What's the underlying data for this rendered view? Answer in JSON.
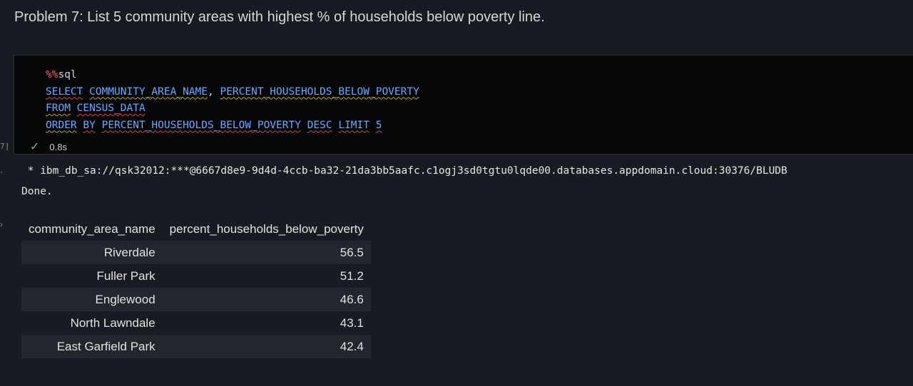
{
  "markdown": {
    "heading": "Problem 7: List 5 community areas with highest % of households below poverty line."
  },
  "code_cell": {
    "magic_prefix": "%%",
    "magic_name": "sql",
    "line2_kw": "SELECT",
    "line2_col1": "COMMUNITY_AREA_NAME",
    "line2_sep": ", ",
    "line2_col2": "PERCENT_HOUSEHOLDS_BELOW_POVERTY",
    "line3_kw": "FROM",
    "line3_table": "CENSUS_DATA",
    "line4_kw1": "ORDER",
    "line4_kw2": "BY",
    "line4_col": "PERCENT_HOUSEHOLDS_BELOW_POVERTY",
    "line4_kw3": "DESC",
    "line4_kw4": "LIMIT",
    "line4_num": "5",
    "execution_count": "7]",
    "status_icon": "check-icon",
    "duration": "0.8s"
  },
  "output": {
    "connection": " * ibm_db_sa://qsk32012:***@6667d8e9-9d4d-4ccb-ba32-21da3bb5aafc.c1ogj3sd0tgtu0lqde00.databases.appdomain.cloud:30376/BLUDB",
    "done": "Done.",
    "table": {
      "headers": [
        "community_area_name",
        "percent_households_below_poverty"
      ],
      "rows": [
        [
          "Riverdale",
          "56.5"
        ],
        [
          "Fuller Park",
          "51.2"
        ],
        [
          "Englewood",
          "46.6"
        ],
        [
          "North Lawndale",
          "43.1"
        ],
        [
          "East Garfield Park",
          "42.4"
        ]
      ]
    }
  },
  "colors": {
    "background": "#181b21",
    "cell_background": "#050608",
    "keyword": "#6aa9ff",
    "magic": "#ff5f56",
    "success": "#6cc26c"
  }
}
